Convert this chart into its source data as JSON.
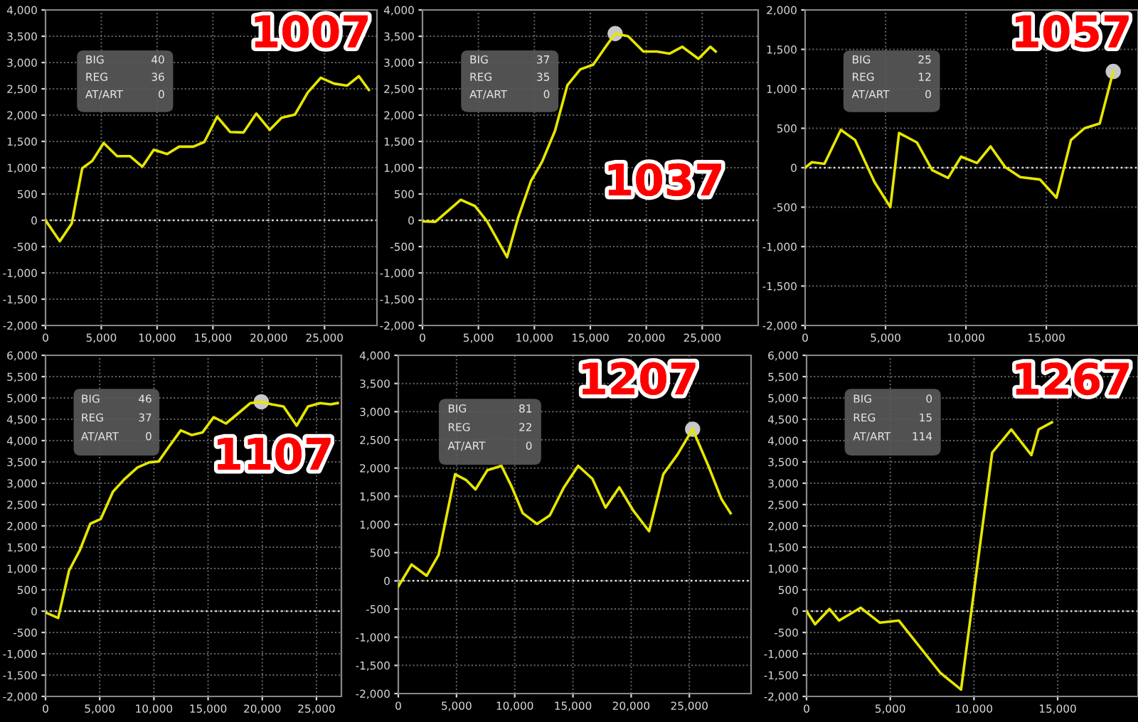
{
  "chart_data": [
    {
      "type": "line",
      "title": "1007",
      "annotations": [
        "BIG",
        "40",
        "REG",
        "36",
        "AT/ART",
        "0"
      ],
      "grid": true,
      "xlim": [
        0,
        29700
      ],
      "ylim": [
        -2000,
        4000
      ],
      "xticks": [
        0,
        {
          "value": 5000,
          "label": "5,000"
        },
        {
          "value": 10000,
          "label": "10,000"
        },
        {
          "value": 15000,
          "label": "15,000"
        },
        {
          "value": 20000,
          "label": "20,000"
        },
        {
          "value": 25000,
          "label": "25,000"
        }
      ],
      "yticks": [
        {
          "value": -2000,
          "label": "-2,000"
        },
        {
          "value": -1500,
          "label": "-1,500"
        },
        {
          "value": -1000,
          "label": "-1,000"
        },
        -500,
        0,
        500,
        {
          "value": 1000,
          "label": "1,000"
        },
        {
          "value": 1500,
          "label": "1,500"
        },
        {
          "value": 2000,
          "label": "2,000"
        },
        {
          "value": 2500,
          "label": "2,500"
        },
        {
          "value": 3000,
          "label": "3,000"
        },
        {
          "value": 3500,
          "label": "3,500"
        },
        {
          "value": 4000,
          "label": "4,000"
        }
      ],
      "ref_lines": [
        {
          "axis": "y",
          "value": 0,
          "color": "#e0e0e0",
          "line_style": "dotted"
        }
      ],
      "series": [
        {
          "type": "line",
          "color": "#e6e600",
          "x": [
            0,
            1280,
            2350,
            3290,
            4190,
            5210,
            6410,
            7560,
            8680,
            9700,
            10900,
            11970,
            13250,
            14230,
            15380,
            16540,
            17740,
            18890,
            20090,
            21150,
            22350,
            23500,
            24660,
            25850,
            27010,
            28080,
            28970
          ],
          "values": [
            0,
            -400,
            -60,
            990,
            1130,
            1470,
            1220,
            1220,
            1020,
            1340,
            1260,
            1400,
            1400,
            1490,
            1970,
            1680,
            1670,
            2030,
            1720,
            1950,
            2010,
            2430,
            2710,
            2600,
            2560,
            2740,
            2480
          ]
        }
      ]
    },
    {
      "type": "line",
      "title": "1037",
      "annotations": [
        "BIG",
        "37",
        "REG",
        "35",
        "AT/ART",
        "0"
      ],
      "grid": true,
      "xlim": [
        0,
        30000
      ],
      "ylim": [
        -2000,
        4000
      ],
      "xticks": [
        0,
        {
          "value": 5000,
          "label": "5,000"
        },
        {
          "value": 10000,
          "label": "10,000"
        },
        {
          "value": 15000,
          "label": "15,000"
        },
        {
          "value": 20000,
          "label": "20,000"
        },
        {
          "value": 25000,
          "label": "25,000"
        }
      ],
      "yticks": [
        {
          "value": -2000,
          "label": "-2,000"
        },
        {
          "value": -1500,
          "label": "-1,500"
        },
        {
          "value": -1000,
          "label": "-1,000"
        },
        -500,
        0,
        500,
        {
          "value": 1000,
          "label": "1,000"
        },
        {
          "value": 1500,
          "label": "1,500"
        },
        {
          "value": 2000,
          "label": "2,000"
        },
        {
          "value": 2500,
          "label": "2,500"
        },
        {
          "value": 3000,
          "label": "3,000"
        },
        {
          "value": 3500,
          "label": "3,500"
        },
        {
          "value": 4000,
          "label": "4,000"
        }
      ],
      "ref_lines": [
        {
          "axis": "y",
          "value": 0,
          "color": "#e0e0e0",
          "line_style": "dotted"
        }
      ],
      "series": [
        {
          "type": "line",
          "color": "#e6e600",
          "x": [
            0,
            1150,
            3420,
            4700,
            5770,
            7560,
            8550,
            9700,
            10680,
            11840,
            12950,
            14100,
            15260,
            16370,
            17220,
            18380,
            19740,
            20940,
            22090,
            23210,
            24660,
            25730,
            26200
          ],
          "values": [
            -20,
            -30,
            390,
            270,
            -20,
            -700,
            50,
            750,
            1110,
            1700,
            2570,
            2870,
            2960,
            3300,
            3550,
            3500,
            3210,
            3210,
            3170,
            3300,
            3070,
            3300,
            3210
          ]
        },
        {
          "type": "scatter",
          "color": "#c8c8c8",
          "x": [
            17220
          ],
          "values": [
            3550
          ]
        }
      ]
    },
    {
      "type": "line",
      "title": "1057",
      "annotations": [
        "BIG",
        "25",
        "REG",
        "12",
        "AT/ART",
        "0"
      ],
      "grid": true,
      "xlim": [
        0,
        20700
      ],
      "ylim": [
        -2000,
        2000
      ],
      "xticks": [
        0,
        {
          "value": 5000,
          "label": "5,000"
        },
        {
          "value": 10000,
          "label": "10,000"
        },
        {
          "value": 15000,
          "label": "15,000"
        }
      ],
      "yticks": [
        {
          "value": -2000,
          "label": "-2,000"
        },
        {
          "value": -1500,
          "label": "-1,500"
        },
        {
          "value": -1000,
          "label": "-1,000"
        },
        -500,
        0,
        500,
        {
          "value": 1000,
          "label": "1,000"
        },
        {
          "value": 1500,
          "label": "1,500"
        },
        {
          "value": 2000,
          "label": "2,000"
        }
      ],
      "ref_lines": [
        {
          "axis": "y",
          "value": 0,
          "color": "#e0e0e0",
          "line_style": "dotted"
        }
      ],
      "series": [
        {
          "type": "line",
          "color": "#e6e600",
          "x": [
            0,
            420,
            1200,
            2220,
            3110,
            4310,
            5300,
            5840,
            6950,
            7900,
            8890,
            9700,
            10690,
            11530,
            12430,
            13380,
            14610,
            15630,
            16530,
            17370,
            18320,
            19160
          ],
          "values": [
            0,
            70,
            50,
            480,
            350,
            -180,
            -500,
            440,
            320,
            -30,
            -130,
            140,
            60,
            270,
            10,
            -120,
            -150,
            -380,
            350,
            500,
            560,
            1220
          ]
        },
        {
          "type": "scatter",
          "color": "#c8c8c8",
          "x": [
            19160
          ],
          "values": [
            1220
          ]
        }
      ]
    },
    {
      "type": "line",
      "title": "1107",
      "annotations": [
        "BIG",
        "46",
        "REG",
        "37",
        "AT/ART",
        "0"
      ],
      "grid": true,
      "xlim": [
        0,
        27300
      ],
      "ylim": [
        -2000,
        6000
      ],
      "xticks": [
        0,
        {
          "value": 5000,
          "label": "5,000"
        },
        {
          "value": 10000,
          "label": "10,000"
        },
        {
          "value": 15000,
          "label": "15,000"
        },
        {
          "value": 20000,
          "label": "20,000"
        },
        {
          "value": 25000,
          "label": "25,000"
        }
      ],
      "yticks": [
        {
          "value": -2000,
          "label": "-2,000"
        },
        {
          "value": -1500,
          "label": "-1,500"
        },
        {
          "value": -1000,
          "label": "-1,000"
        },
        -500,
        0,
        500,
        {
          "value": 1000,
          "label": "1,000"
        },
        {
          "value": 1500,
          "label": "1,500"
        },
        {
          "value": 2000,
          "label": "2,000"
        },
        {
          "value": 2500,
          "label": "2,500"
        },
        {
          "value": 3000,
          "label": "3,000"
        },
        {
          "value": 3500,
          "label": "3,500"
        },
        {
          "value": 4000,
          "label": "4,000"
        },
        {
          "value": 4500,
          "label": "4,500"
        },
        {
          "value": 5000,
          "label": "5,000"
        },
        {
          "value": 5500,
          "label": "5,500"
        },
        {
          "value": 6000,
          "label": "6,000"
        }
      ],
      "ref_lines": [
        {
          "axis": "y",
          "value": 0,
          "color": "#e0e0e0",
          "line_style": "dotted"
        }
      ],
      "series": [
        {
          "type": "line",
          "color": "#e6e600",
          "x": [
            0,
            1170,
            2170,
            3170,
            4130,
            5090,
            6220,
            7260,
            8480,
            9570,
            10430,
            11430,
            12480,
            13480,
            14480,
            15520,
            16650,
            17830,
            18910,
            19910,
            20870,
            21960,
            23170,
            24220,
            25350,
            26300,
            26960
          ],
          "values": [
            -30,
            -160,
            950,
            1430,
            2050,
            2160,
            2800,
            3090,
            3370,
            3490,
            3510,
            3870,
            4240,
            4130,
            4190,
            4550,
            4400,
            4650,
            4880,
            4910,
            4850,
            4800,
            4350,
            4800,
            4880,
            4850,
            4880
          ]
        },
        {
          "type": "scatter",
          "color": "#c8c8c8",
          "x": [
            19910
          ],
          "values": [
            4910
          ]
        }
      ]
    },
    {
      "type": "line",
      "title": "1207",
      "annotations": [
        "BIG",
        "81",
        "REG",
        "22",
        "AT/ART",
        "0"
      ],
      "grid": true,
      "xlim": [
        0,
        30300
      ],
      "ylim": [
        -2000,
        4000
      ],
      "xticks": [
        0,
        {
          "value": 5000,
          "label": "5,000"
        },
        {
          "value": 10000,
          "label": "10,000"
        },
        {
          "value": 15000,
          "label": "15,000"
        },
        {
          "value": 20000,
          "label": "20,000"
        },
        {
          "value": 25000,
          "label": "25,000"
        }
      ],
      "yticks": [
        {
          "value": -2000,
          "label": "-2,000"
        },
        {
          "value": -1500,
          "label": "-1,500"
        },
        {
          "value": -1000,
          "label": "-1,000"
        },
        -500,
        0,
        500,
        {
          "value": 1000,
          "label": "1,000"
        },
        {
          "value": 1500,
          "label": "1,500"
        },
        {
          "value": 2000,
          "label": "2,000"
        },
        {
          "value": 2500,
          "label": "2,500"
        },
        {
          "value": 3000,
          "label": "3,000"
        },
        {
          "value": 3500,
          "label": "3,500"
        },
        {
          "value": 4000,
          "label": "4,000"
        }
      ],
      "ref_lines": [
        {
          "axis": "y",
          "value": 0,
          "color": "#e0e0e0",
          "line_style": "dotted"
        }
      ],
      "series": [
        {
          "type": "line",
          "color": "#e6e600",
          "x": [
            0,
            1140,
            2440,
            3460,
            4880,
            5810,
            6630,
            7640,
            8860,
            9760,
            10690,
            11910,
            13010,
            14230,
            15450,
            16670,
            17800,
            18980,
            20200,
            21540,
            22760,
            23980,
            25280,
            26630,
            27760,
            28540
          ],
          "values": [
            -100,
            290,
            90,
            460,
            1890,
            1790,
            1620,
            1960,
            2040,
            1660,
            1200,
            1010,
            1160,
            1660,
            2040,
            1810,
            1300,
            1660,
            1240,
            880,
            1890,
            2240,
            2690,
            2040,
            1450,
            1200
          ]
        },
        {
          "type": "scatter",
          "color": "#c8c8c8",
          "x": [
            25280
          ],
          "values": [
            2690
          ]
        }
      ]
    },
    {
      "type": "line",
      "title": "1267",
      "annotations": [
        "BIG",
        "0",
        "REG",
        "15",
        "AT/ART",
        "114"
      ],
      "grid": true,
      "xlim": [
        0,
        19800
      ],
      "ylim": [
        -2000,
        6000
      ],
      "xticks": [
        0,
        {
          "value": 5000,
          "label": "5,000"
        },
        {
          "value": 10000,
          "label": "10,000"
        },
        {
          "value": 15000,
          "label": "15,000"
        }
      ],
      "yticks": [
        {
          "value": -2000,
          "label": "-2,000"
        },
        {
          "value": -1500,
          "label": "-1,500"
        },
        {
          "value": -1000,
          "label": "-1,000"
        },
        -500,
        0,
        500,
        {
          "value": 1000,
          "label": "1,000"
        },
        {
          "value": 1500,
          "label": "1,500"
        },
        {
          "value": 2000,
          "label": "2,000"
        },
        {
          "value": 2500,
          "label": "2,500"
        },
        {
          "value": 3000,
          "label": "3,000"
        },
        {
          "value": 3500,
          "label": "3,500"
        },
        {
          "value": 4000,
          "label": "4,000"
        },
        {
          "value": 4500,
          "label": "4,500"
        },
        {
          "value": 5000,
          "label": "5,000"
        },
        {
          "value": 5500,
          "label": "5,500"
        },
        {
          "value": 6000,
          "label": "6,000"
        }
      ],
      "ref_lines": [
        {
          "axis": "y",
          "value": 0,
          "color": "#e0e0e0",
          "line_style": "dotted"
        }
      ],
      "series": [
        {
          "type": "line",
          "color": "#e6e600",
          "x": [
            0,
            510,
            1370,
            1940,
            3230,
            4370,
            5510,
            8000,
            9230,
            11090,
            12230,
            13430,
            13860,
            14660
          ],
          "values": [
            0,
            -310,
            50,
            -220,
            80,
            -270,
            -220,
            -1450,
            -1840,
            3720,
            4260,
            3660,
            4260,
            4430
          ]
        }
      ]
    }
  ]
}
